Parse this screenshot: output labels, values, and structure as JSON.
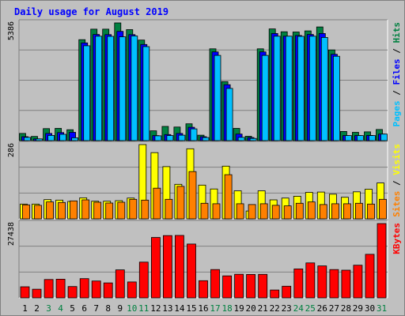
{
  "chart_data": {
    "type": "bar",
    "title": "Daily usage for August 2019",
    "categories": [
      "1",
      "2",
      "3",
      "4",
      "5",
      "6",
      "7",
      "8",
      "9",
      "10",
      "11",
      "12",
      "13",
      "14",
      "15",
      "16",
      "17",
      "18",
      "19",
      "20",
      "21",
      "22",
      "23",
      "24",
      "25",
      "26",
      "27",
      "28",
      "29",
      "30",
      "31"
    ],
    "weekend_days": [
      "3",
      "4",
      "10",
      "11",
      "17",
      "18",
      "24",
      "25",
      "31"
    ],
    "panels": [
      {
        "id": "pages_files_hits",
        "max_label": "5386",
        "ylim": [
          0,
          5386
        ],
        "label_parts": [
          {
            "text": "Pages",
            "color": "#00c0ff"
          },
          {
            "text": " / ",
            "color": "#000000"
          },
          {
            "text": "Files",
            "color": "#0000ff"
          },
          {
            "text": " / ",
            "color": "#000000"
          },
          {
            "text": "Hits",
            "color": "#008040"
          }
        ],
        "series": [
          {
            "name": "Hits",
            "color": "#008040",
            "values": [
              330,
              190,
              550,
              560,
              500,
              4620,
              5100,
              5100,
              5386,
              5080,
              4600,
              450,
              650,
              620,
              770,
              250,
              4200,
              2700,
              560,
              200,
              4200,
              5110,
              4980,
              4970,
              5020,
              5200,
              4150,
              420,
              380,
              400,
              510
            ]
          },
          {
            "name": "Files",
            "color": "#0000ff",
            "values": [
              180,
              80,
              330,
              370,
              380,
              4470,
              4860,
              4850,
              5000,
              4850,
              4400,
              230,
              280,
              330,
              610,
              180,
              4060,
              2560,
              300,
              140,
              4060,
              4900,
              4780,
              4810,
              4860,
              4900,
              3950,
              230,
              230,
              240,
              300
            ]
          },
          {
            "name": "Pages",
            "color": "#00c0ff",
            "values": [
              150,
              80,
              240,
              290,
              130,
              4340,
              4780,
              4770,
              4750,
              4790,
              4300,
              220,
              230,
              250,
              540,
              140,
              3900,
              2390,
              150,
              100,
              3900,
              4780,
              4780,
              4770,
              4780,
              4720,
              3860,
              230,
              230,
              230,
              300
            ]
          }
        ]
      },
      {
        "id": "visits_sites",
        "max_label": "286",
        "ylim": [
          0,
          286
        ],
        "label_parts": [
          {
            "text": "Sites",
            "color": "#ff8000"
          },
          {
            "text": " / ",
            "color": "#000000"
          },
          {
            "text": "Visits",
            "color": "#ffff00"
          }
        ],
        "series": [
          {
            "name": "Visits",
            "color": "#ffff00",
            "values": [
              57,
              57,
              74,
              72,
              67,
              81,
              68,
              68,
              70,
              80,
              286,
              255,
              201,
              133,
              270,
              130,
              115,
              203,
              108,
              30,
              108,
              73,
              80,
              87,
              102,
              103,
              95,
              83,
              104,
              114,
              138
            ]
          },
          {
            "name": "Sites",
            "color": "#ff8000",
            "values": [
              54,
              52,
              65,
              63,
              69,
              73,
              64,
              61,
              64,
              75,
              72,
              118,
              75,
              125,
              182,
              60,
              58,
              170,
              58,
              55,
              58,
              52,
              50,
              60,
              65,
              55,
              58,
              58,
              60,
              57,
              75
            ]
          }
        ]
      },
      {
        "id": "kbytes",
        "max_label": "27438",
        "ylim": [
          0,
          27438
        ],
        "label_parts": [
          {
            "text": "KBytes",
            "color": "#ff0000"
          }
        ],
        "series": [
          {
            "name": "KBytes",
            "color": "#ff0000",
            "values": [
              4090,
              3190,
              6760,
              6900,
              4170,
              7090,
              6220,
              5530,
              10330,
              5860,
              13190,
              22310,
              23010,
              23050,
              19880,
              6320,
              10450,
              8120,
              8710,
              8650,
              8660,
              2890,
              4300,
              10670,
              12900,
              11780,
              10450,
              10230,
              12050,
              16070,
              27438
            ]
          }
        ]
      }
    ]
  }
}
